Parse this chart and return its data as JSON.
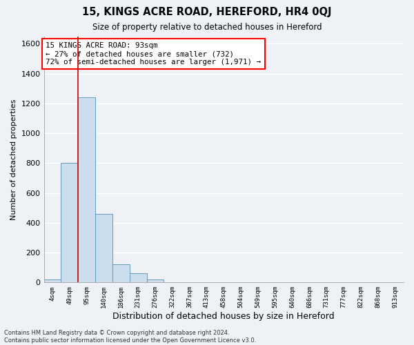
{
  "title": "15, KINGS ACRE ROAD, HEREFORD, HR4 0QJ",
  "subtitle": "Size of property relative to detached houses in Hereford",
  "xlabel": "Distribution of detached houses by size in Hereford",
  "ylabel": "Number of detached properties",
  "bar_color": "#ccdded",
  "bar_edge_color": "#6699bb",
  "categories": [
    "4sqm",
    "49sqm",
    "95sqm",
    "140sqm",
    "186sqm",
    "231sqm",
    "276sqm",
    "322sqm",
    "367sqm",
    "413sqm",
    "458sqm",
    "504sqm",
    "549sqm",
    "595sqm",
    "640sqm",
    "686sqm",
    "731sqm",
    "777sqm",
    "822sqm",
    "868sqm",
    "913sqm"
  ],
  "values": [
    20,
    800,
    1240,
    460,
    120,
    60,
    20,
    0,
    0,
    0,
    0,
    0,
    0,
    0,
    0,
    0,
    0,
    0,
    0,
    0,
    0
  ],
  "ylim": [
    0,
    1650
  ],
  "yticks": [
    0,
    200,
    400,
    600,
    800,
    1000,
    1200,
    1400,
    1600
  ],
  "annotation_text_line1": "15 KINGS ACRE ROAD: 93sqm",
  "annotation_text_line2": "← 27% of detached houses are smaller (732)",
  "annotation_text_line3": "72% of semi-detached houses are larger (1,971) →",
  "vline_color": "#cc0000",
  "footer": "Contains HM Land Registry data © Crown copyright and database right 2024.\nContains public sector information licensed under the Open Government Licence v3.0.",
  "background_color": "#eef2f7",
  "grid_color": "#ffffff"
}
